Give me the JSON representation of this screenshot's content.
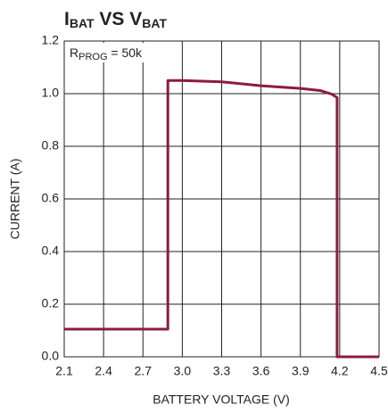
{
  "chart_data": {
    "type": "line",
    "title": [
      "I",
      "BAT",
      " VS V",
      "BAT"
    ],
    "annotation": [
      "R",
      "PROG",
      " = 50k"
    ],
    "xlabel": "BATTERY VOLTAGE (V)",
    "ylabel": "CURRENT (A)",
    "xlim": [
      2.1,
      4.5
    ],
    "ylim": [
      0,
      1.2
    ],
    "xticks": [
      2.1,
      2.4,
      2.7,
      {
        "value": 3,
        "label": "3.0"
      },
      3.3,
      3.6,
      3.9,
      4.2,
      4.5
    ],
    "yticks": [
      {
        "value": 0,
        "label": "0.0"
      },
      0.2,
      0.4,
      0.6,
      0.8,
      {
        "value": 1,
        "label": "1.0"
      },
      1.2
    ],
    "grid": true,
    "series": [
      {
        "color": "#8c1c3c",
        "x": [
          2.1,
          2.89,
          2.89,
          3.0,
          3.3,
          3.6,
          3.9,
          4.05,
          4.14,
          4.18,
          4.18,
          4.5
        ],
        "values": [
          0.105,
          0.105,
          1.05,
          1.05,
          1.045,
          1.03,
          1.02,
          1.012,
          0.998,
          0.985,
          0,
          0
        ]
      }
    ]
  }
}
